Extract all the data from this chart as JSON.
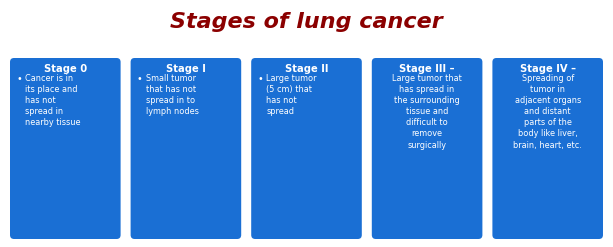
{
  "title": "Stages of lung cancer",
  "title_color": "#8B0000",
  "title_fontsize": 16,
  "background_color": "#FFFFFF",
  "box_color": "#1A6FD4",
  "box_edge_color": "#1A6FD4",
  "header_text_color": "#FFFFFF",
  "body_text_color": "#FFFFFF",
  "stages": [
    {
      "header": "Stage 0",
      "bullet": true,
      "body": "Cancer is in\nits place and\nhas not\nspread in\nnearby tissue"
    },
    {
      "header": "Stage I",
      "bullet": true,
      "body": "Small tumor\nthat has not\nspread in to\nlymph nodes"
    },
    {
      "header": "Stage II",
      "bullet": true,
      "body": "Large tumor\n(5 cm) that\nhas not\nspread"
    },
    {
      "header": "Stage III –",
      "bullet": false,
      "body": "Large tumor that\nhas spread in\nthe surrounding\ntissue and\ndifficult to\nremove\nsurgically"
    },
    {
      "header": "Stage IV –",
      "bullet": false,
      "body": "Spreading of\ntumor in\nadjacent organs\nand distant\nparts of the\nbody like liver,\nbrain, heart, etc."
    }
  ]
}
